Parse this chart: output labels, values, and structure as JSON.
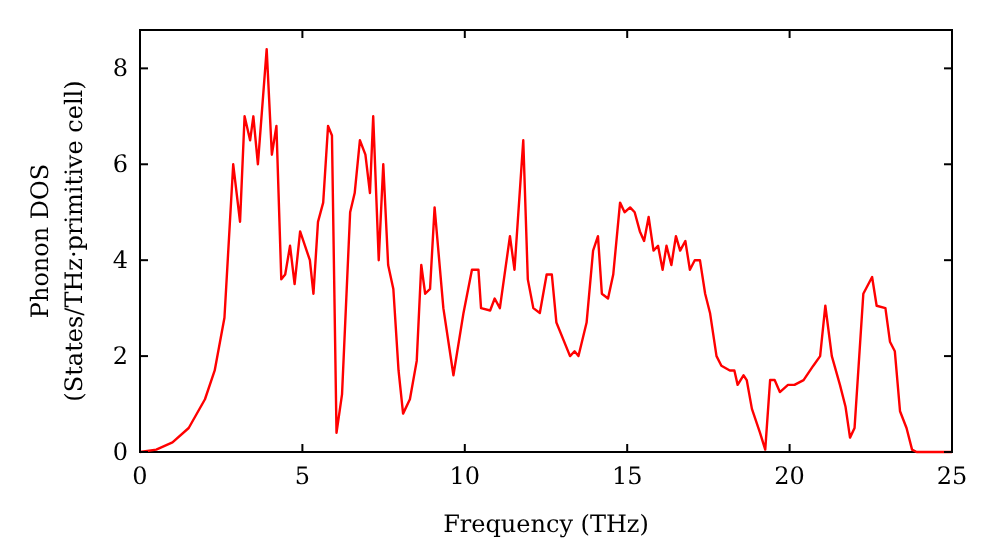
{
  "chart_data": {
    "type": "line",
    "xlabel": "Frequency (THz)",
    "ylabel": "Phonon DOS\n(States/THz·primitive cell)",
    "xlim": [
      0,
      25
    ],
    "xticks": [
      0,
      5,
      10,
      15,
      20,
      25
    ],
    "ylim": [
      0,
      8.8
    ],
    "yticks": [
      0,
      2,
      4,
      6,
      8
    ],
    "grid": false,
    "line_style": "solid",
    "series": [
      {
        "color": "#ff0000",
        "x": [
          0,
          0.5,
          1,
          1.5,
          2,
          2.3,
          2.6,
          2.87,
          3.08,
          3.22,
          3.39,
          3.49,
          3.63,
          3.9,
          4.06,
          4.2,
          4.35,
          4.47,
          4.62,
          4.76,
          4.93,
          5.23,
          5.34,
          5.48,
          5.64,
          5.79,
          5.91,
          6.05,
          6.22,
          6.47,
          6.61,
          6.77,
          6.94,
          7.08,
          7.18,
          7.35,
          7.49,
          7.64,
          7.8,
          7.96,
          8.1,
          8.31,
          8.52,
          8.66,
          8.78,
          8.93,
          9.07,
          9.34,
          9.65,
          9.96,
          10.22,
          10.42,
          10.5,
          10.78,
          10.92,
          11.08,
          11.39,
          11.53,
          11.8,
          11.94,
          12.11,
          12.31,
          12.52,
          12.68,
          12.82,
          13.24,
          13.38,
          13.5,
          13.75,
          13.95,
          14.1,
          14.22,
          14.41,
          14.57,
          14.78,
          14.92,
          15.09,
          15.23,
          15.39,
          15.52,
          15.66,
          15.81,
          15.95,
          16.09,
          16.21,
          16.36,
          16.5,
          16.63,
          16.79,
          16.93,
          17.08,
          17.24,
          17.4,
          17.55,
          17.75,
          17.9,
          18.16,
          18.3,
          18.4,
          18.58,
          18.68,
          18.84,
          19.09,
          19.25,
          19.4,
          19.54,
          19.7,
          19.95,
          20.15,
          20.43,
          20.73,
          20.94,
          21.1,
          21.3,
          21.55,
          21.72,
          21.86,
          22.0,
          22.27,
          22.54,
          22.68,
          22.95,
          23.09,
          23.24,
          23.4,
          23.6,
          23.77,
          23.91,
          25
        ],
        "values": [
          0,
          0.05,
          0.2,
          0.5,
          1.1,
          1.7,
          2.8,
          6.0,
          4.8,
          7.0,
          6.5,
          7.0,
          6.0,
          8.4,
          6.2,
          6.8,
          3.6,
          3.7,
          4.3,
          3.5,
          4.6,
          4.0,
          3.3,
          4.8,
          5.2,
          6.8,
          6.6,
          0.4,
          1.2,
          5.0,
          5.4,
          6.5,
          6.2,
          5.4,
          7.0,
          4.0,
          6.0,
          3.9,
          3.4,
          1.7,
          0.8,
          1.1,
          1.9,
          3.9,
          3.3,
          3.4,
          5.1,
          3.0,
          1.6,
          2.9,
          3.8,
          3.8,
          3.0,
          2.95,
          3.2,
          3.0,
          4.5,
          3.8,
          6.5,
          3.6,
          3.0,
          2.9,
          3.7,
          3.7,
          2.7,
          2.0,
          2.1,
          2.0,
          2.7,
          4.2,
          4.5,
          3.3,
          3.2,
          3.7,
          5.2,
          5.0,
          5.1,
          5.0,
          4.6,
          4.4,
          4.9,
          4.2,
          4.3,
          3.8,
          4.3,
          3.9,
          4.5,
          4.2,
          4.4,
          3.8,
          4.0,
          4.0,
          3.3,
          2.9,
          2.0,
          1.8,
          1.7,
          1.7,
          1.4,
          1.6,
          1.5,
          0.9,
          0.4,
          0.05,
          1.5,
          1.5,
          1.25,
          1.4,
          1.4,
          1.5,
          1.8,
          2.0,
          3.05,
          2.0,
          1.4,
          0.95,
          0.3,
          0.5,
          3.3,
          3.65,
          3.05,
          3.0,
          2.3,
          2.1,
          0.85,
          0.5,
          0.05,
          0,
          0
        ]
      }
    ]
  }
}
